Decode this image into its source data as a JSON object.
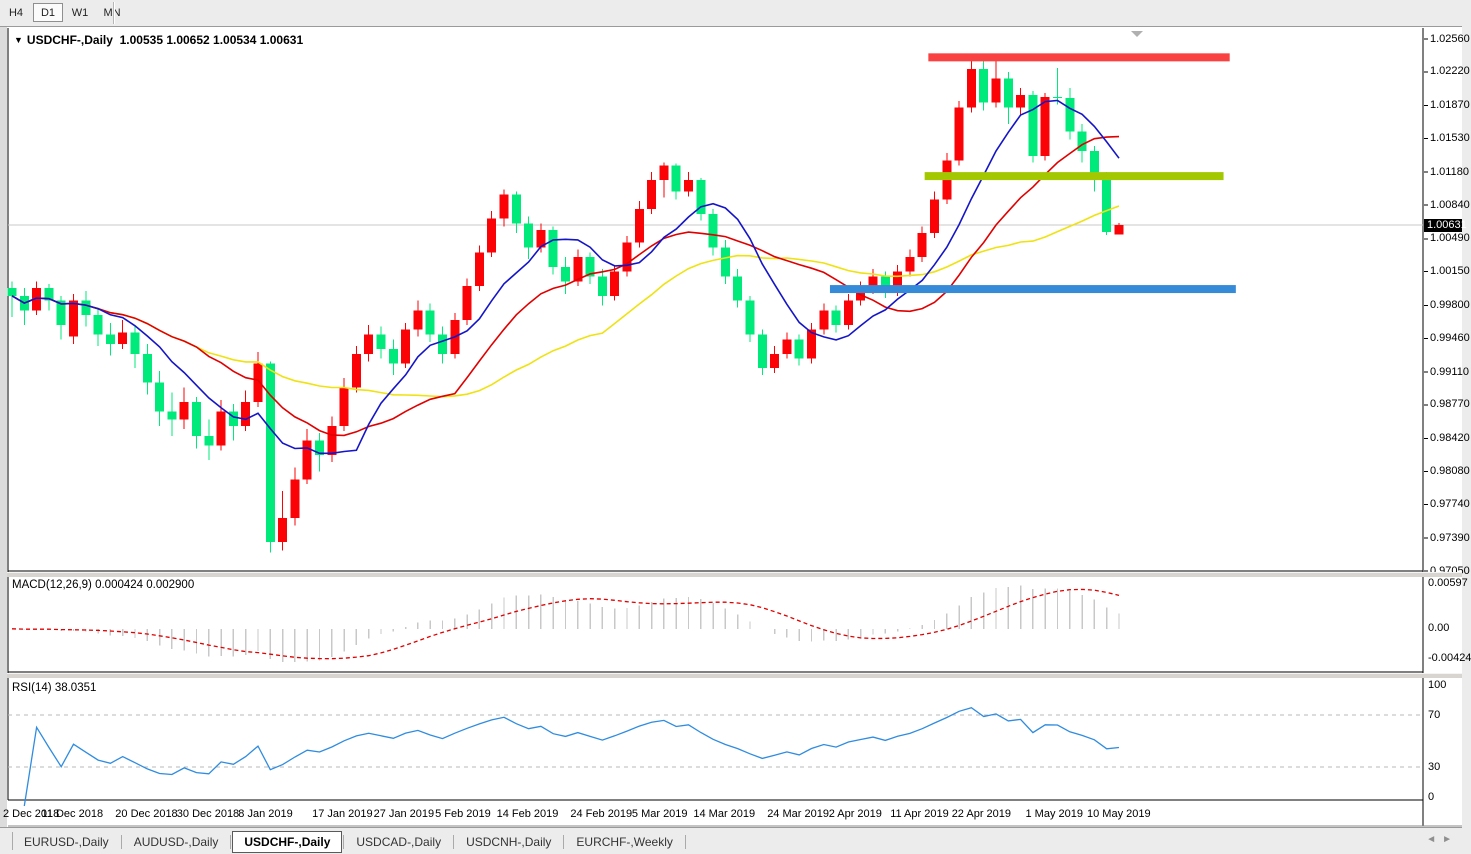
{
  "toolbar": {
    "timeframes": [
      {
        "label": "H4",
        "active": false
      },
      {
        "label": "D1",
        "active": true
      },
      {
        "label": "W1",
        "active": false
      },
      {
        "label": "MN",
        "active": false
      }
    ]
  },
  "title": {
    "collapse_icon": "▼",
    "symbol_label": "USDCHF-,Daily",
    "quote": "1.00535 1.00652 1.00534 1.00631"
  },
  "price_axis": {
    "labels": [
      "1.02560",
      "1.02220",
      "1.01870",
      "1.01530",
      "1.01180",
      "1.00840",
      "1.00490",
      "1.00150",
      "0.99800",
      "0.99460",
      "0.99110",
      "0.98770",
      "0.98420",
      "0.98080",
      "0.97740",
      "0.97390",
      "0.97050"
    ],
    "current": "1.00631"
  },
  "date_axis": {
    "labels": [
      "2 Dec 2018",
      "11 Dec 2018",
      "20 Dec 2018",
      "30 Dec 2018",
      "8 Jan 2019",
      "17 Jan 2019",
      "27 Jan 2019",
      "5 Feb 2019",
      "14 Feb 2019",
      "24 Feb 2019",
      "5 Mar 2019",
      "14 Mar 2019",
      "24 Mar 2019",
      "2 Apr 2019",
      "11 Apr 2019",
      "22 Apr 2019",
      "1 May 2019",
      "10 May 2019"
    ]
  },
  "macd_panel": {
    "label": "MACD(12,26,9) 0.000424 0.002900",
    "axis_labels": [
      "0.00597",
      "0.00",
      "-0.00424"
    ],
    "current_macd": "0.000424",
    "current_signal": "0.002900"
  },
  "rsi_panel": {
    "label": "RSI(14) 38.0351",
    "axis_labels": [
      "100",
      "70",
      "30",
      "0"
    ],
    "current": "38.0351",
    "levels": [
      70,
      30
    ]
  },
  "tabs": {
    "items": [
      {
        "label": "EURUSD-,Daily",
        "active": false
      },
      {
        "label": "AUDUSD-,Daily",
        "active": false
      },
      {
        "label": "USDCHF-,Daily",
        "active": true
      },
      {
        "label": "USDCAD-,Daily",
        "active": false
      },
      {
        "label": "USDCNH-,Daily",
        "active": false
      },
      {
        "label": "EURCHF-,Weekly",
        "active": false
      }
    ],
    "scroll_left_icon": "◄",
    "scroll_right_icon": "►"
  },
  "colors": {
    "candle_up": "#fb0207",
    "candle_down": "#00e97b",
    "ma_fast": "#1515c8",
    "ma_medium": "#e00000",
    "ma_slow": "#efe212",
    "overlay_red": "#f94141",
    "overlay_olive": "#a3c801",
    "overlay_blue": "#368bd9",
    "current_price_line": "#c8c8c8",
    "macd_histogram": "#c8c8c8",
    "macd_signal": "#e00000",
    "rsi_line": "#2f8ce0",
    "level_dashed": "#b8b8b8",
    "panel_border": "#000000"
  },
  "chart_data": {
    "type": "candlestick",
    "symbol": "USDCHF-",
    "timeframe": "Daily",
    "ohlc_display": {
      "open": "1.00535",
      "high": "1.00652",
      "low": "1.00534",
      "close": "1.00631"
    },
    "y_axis_range": [
      0.9705,
      1.0256
    ],
    "date_tick_indices": [
      0,
      5,
      11,
      16,
      21,
      27,
      32,
      37,
      42,
      48,
      53,
      58,
      64,
      69,
      74,
      79,
      85,
      90
    ],
    "candles": [
      [
        0.9998,
        1.0005,
        0.9968,
        0.999
      ],
      [
        0.999,
        0.9998,
        0.996,
        0.9975
      ],
      [
        0.9975,
        1.0005,
        0.997,
        0.9998
      ],
      [
        0.9998,
        1.0002,
        0.9975,
        0.9985
      ],
      [
        0.9985,
        0.999,
        0.9945,
        0.996
      ],
      [
        0.9948,
        0.9992,
        0.994,
        0.9985
      ],
      [
        0.9985,
        0.9995,
        0.9958,
        0.997
      ],
      [
        0.997,
        0.9978,
        0.9938,
        0.995
      ],
      [
        0.995,
        0.9962,
        0.9928,
        0.994
      ],
      [
        0.994,
        0.9965,
        0.9935,
        0.9952
      ],
      [
        0.9952,
        0.9958,
        0.9915,
        0.993
      ],
      [
        0.993,
        0.994,
        0.9888,
        0.99
      ],
      [
        0.99,
        0.9912,
        0.9855,
        0.987
      ],
      [
        0.987,
        0.989,
        0.9845,
        0.9862
      ],
      [
        0.9862,
        0.9895,
        0.9852,
        0.988
      ],
      [
        0.988,
        0.9885,
        0.9832,
        0.9845
      ],
      [
        0.9845,
        0.9862,
        0.982,
        0.9835
      ],
      [
        0.9835,
        0.9882,
        0.983,
        0.987
      ],
      [
        0.987,
        0.9878,
        0.984,
        0.9855
      ],
      [
        0.9855,
        0.9892,
        0.985,
        0.988
      ],
      [
        0.988,
        0.9932,
        0.9875,
        0.992
      ],
      [
        0.992,
        0.9922,
        0.9724,
        0.9735
      ],
      [
        0.9735,
        0.9788,
        0.9726,
        0.976
      ],
      [
        0.976,
        0.9812,
        0.9752,
        0.98
      ],
      [
        0.98,
        0.9852,
        0.9795,
        0.984
      ],
      [
        0.984,
        0.9848,
        0.9808,
        0.9825
      ],
      [
        0.9825,
        0.9865,
        0.9818,
        0.9855
      ],
      [
        0.9855,
        0.9905,
        0.985,
        0.9895
      ],
      [
        0.9895,
        0.9938,
        0.989,
        0.993
      ],
      [
        0.993,
        0.996,
        0.9922,
        0.995
      ],
      [
        0.995,
        0.9958,
        0.9925,
        0.9935
      ],
      [
        0.9935,
        0.9945,
        0.9908,
        0.992
      ],
      [
        0.992,
        0.9962,
        0.9915,
        0.9955
      ],
      [
        0.9955,
        0.9985,
        0.9948,
        0.9975
      ],
      [
        0.9975,
        0.9982,
        0.9942,
        0.995
      ],
      [
        0.995,
        0.9958,
        0.992,
        0.993
      ],
      [
        0.993,
        0.9972,
        0.9925,
        0.9965
      ],
      [
        0.9965,
        1.0008,
        0.996,
        1.0
      ],
      [
        1.0,
        1.0042,
        0.9995,
        1.0035
      ],
      [
        1.0035,
        1.0078,
        1.003,
        1.007
      ],
      [
        1.007,
        1.01,
        1.0062,
        1.0095
      ],
      [
        1.0095,
        1.0098,
        1.0055,
        1.0065
      ],
      [
        1.0065,
        1.0072,
        1.0028,
        1.004
      ],
      [
        1.004,
        1.0065,
        1.0035,
        1.0058
      ],
      [
        1.0058,
        1.0062,
        1.0012,
        1.002
      ],
      [
        1.002,
        1.003,
        0.9992,
        1.0005
      ],
      [
        1.0005,
        1.0038,
        1.0,
        1.003
      ],
      [
        1.003,
        1.0035,
        1.0002,
        1.001
      ],
      [
        1.001,
        1.0018,
        0.998,
        0.999
      ],
      [
        0.999,
        1.0022,
        0.9985,
        1.0015
      ],
      [
        1.0015,
        1.0052,
        1.001,
        1.0045
      ],
      [
        1.0045,
        1.0088,
        1.004,
        1.008
      ],
      [
        1.008,
        1.0118,
        1.0075,
        1.011
      ],
      [
        1.011,
        1.0128,
        1.0092,
        1.0125
      ],
      [
        1.0125,
        1.0127,
        1.009,
        1.0098
      ],
      [
        1.0098,
        1.0118,
        1.0093,
        1.011
      ],
      [
        1.011,
        1.0112,
        1.0068,
        1.0075
      ],
      [
        1.0075,
        1.008,
        1.0032,
        1.004
      ],
      [
        1.004,
        1.0048,
        1.0002,
        1.001
      ],
      [
        1.001,
        1.0018,
        0.9978,
        0.9985
      ],
      [
        0.9985,
        0.999,
        0.9942,
        0.995
      ],
      [
        0.995,
        0.9955,
        0.9908,
        0.9915
      ],
      [
        0.9915,
        0.9938,
        0.991,
        0.993
      ],
      [
        0.993,
        0.9952,
        0.9925,
        0.9945
      ],
      [
        0.9945,
        0.995,
        0.9918,
        0.9925
      ],
      [
        0.9925,
        0.9962,
        0.992,
        0.9955
      ],
      [
        0.9955,
        0.9982,
        0.995,
        0.9975
      ],
      [
        0.9975,
        0.998,
        0.9952,
        0.996
      ],
      [
        0.996,
        0.9992,
        0.9955,
        0.9985
      ],
      [
        0.9985,
        1.0005,
        0.998,
        0.9998
      ],
      [
        0.9998,
        1.0018,
        0.9992,
        1.001
      ],
      [
        1.001,
        1.0015,
        0.9988,
        0.9995
      ],
      [
        0.9995,
        1.0022,
        0.999,
        1.0015
      ],
      [
        1.0015,
        1.0038,
        1.001,
        1.003
      ],
      [
        1.003,
        1.0062,
        1.0025,
        1.0055
      ],
      [
        1.0055,
        1.0098,
        1.005,
        1.009
      ],
      [
        1.009,
        1.0138,
        1.0085,
        1.013
      ],
      [
        1.013,
        1.0192,
        1.0125,
        1.0185
      ],
      [
        1.0185,
        1.0236,
        1.018,
        1.0225
      ],
      [
        1.0225,
        1.0237,
        1.0182,
        1.019
      ],
      [
        1.019,
        1.0235,
        1.0185,
        1.0215
      ],
      [
        1.0215,
        1.0222,
        1.0168,
        1.0185
      ],
      [
        1.0185,
        1.0205,
        1.0178,
        1.0198
      ],
      [
        1.0198,
        1.0202,
        1.0128,
        1.0135
      ],
      [
        1.0135,
        1.02,
        1.013,
        1.0196
      ],
      [
        1.0196,
        1.0226,
        1.0188,
        1.0195
      ],
      [
        1.0195,
        1.0205,
        1.0152,
        1.016
      ],
      [
        1.016,
        1.0168,
        1.0128,
        1.014
      ],
      [
        1.014,
        1.0145,
        1.0098,
        1.0115
      ],
      [
        1.0115,
        1.0118,
        1.0053,
        1.0056
      ],
      [
        1.00535,
        1.00652,
        1.00534,
        1.00631
      ]
    ],
    "moving_averages": [
      {
        "name": "fast",
        "period": 8
      },
      {
        "name": "medium",
        "period": 16
      },
      {
        "name": "slow",
        "period": 28
      }
    ],
    "indicators": {
      "macd": {
        "fast": 12,
        "slow": 26,
        "signal": 9,
        "axis_max": 0.00597,
        "axis_min": -0.00424
      },
      "rsi": {
        "period": 14,
        "levels": [
          70,
          30
        ],
        "axis": [
          100,
          70,
          30,
          0
        ]
      }
    },
    "overlay_lines": [
      {
        "name": "resistance-line-red",
        "price": 1.0237,
        "from_index": 74.5,
        "to_index": 99.0
      },
      {
        "name": "support-line-olive",
        "price": 1.0114,
        "from_index": 74.2,
        "to_index": 98.5
      },
      {
        "name": "support-line-blue",
        "price": 0.9997,
        "from_index": 66.5,
        "to_index": 99.5
      }
    ]
  }
}
